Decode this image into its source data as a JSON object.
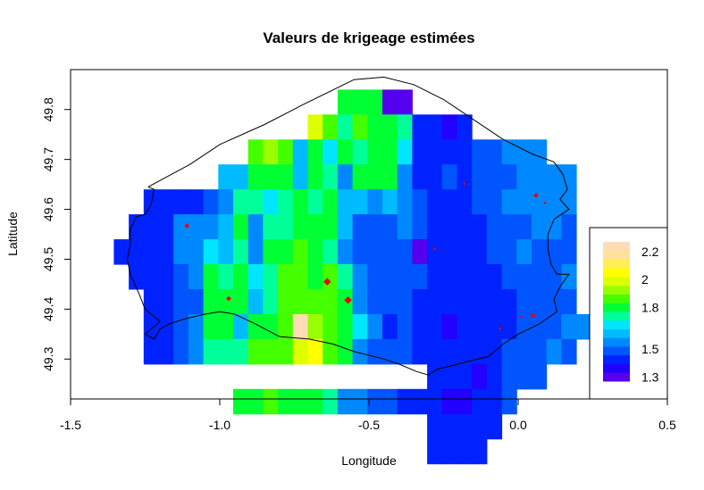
{
  "chart_data": {
    "type": "heatmap",
    "title": "Valeurs de krigeage estimées",
    "xlabel": "Longitude",
    "ylabel": "Latitude",
    "xlim": [
      -1.5,
      0.5
    ],
    "ylim": [
      49.22,
      49.88
    ],
    "x_ticks": [
      "-1.5",
      "-1.0",
      "-0.5",
      "0.0",
      "0.5"
    ],
    "x_tick_values": [
      -1.5,
      -1.0,
      -0.5,
      0.0,
      0.5
    ],
    "y_ticks": [
      "49.3",
      "49.4",
      "49.5",
      "49.6",
      "49.7",
      "49.8"
    ],
    "y_tick_values": [
      49.3,
      49.4,
      49.5,
      49.6,
      49.7,
      49.8
    ],
    "grid": false,
    "legend": {
      "placement": "bottom-right",
      "labels": [
        "2.2",
        "2",
        "1.8",
        "1.5",
        "1.3"
      ],
      "label_values": [
        2.2,
        2.0,
        1.8,
        1.5,
        1.3
      ],
      "range": [
        1.27,
        2.27
      ],
      "colors": [
        "#5500ee",
        "#2200ff",
        "#0022ff",
        "#0055ff",
        "#0088ff",
        "#00bbff",
        "#00e6ff",
        "#00ff99",
        "#00ff33",
        "#44ff00",
        "#99ff00",
        "#ddff00",
        "#ffff00",
        "#ffee55",
        "#ffe199",
        "#ffddb5"
      ]
    },
    "grid_cells": {
      "lon0": -1.33,
      "lon_step": 0.05,
      "lat0": 49.815,
      "lat_step": 0.05,
      "rows": [
        [
          null,
          null,
          null,
          null,
          null,
          null,
          null,
          null,
          null,
          null,
          null,
          null,
          null,
          null,
          null,
          1.81,
          1.81,
          1.78,
          1.33,
          1.33,
          null,
          null,
          null,
          null,
          null,
          null,
          null,
          null,
          null,
          null,
          null,
          null,
          null,
          null,
          null
        ],
        [
          null,
          null,
          null,
          null,
          null,
          null,
          null,
          null,
          null,
          null,
          null,
          null,
          null,
          2.0,
          1.84,
          1.75,
          1.84,
          1.78,
          1.78,
          1.72,
          1.45,
          1.45,
          1.39,
          1.45,
          null,
          null,
          null,
          null,
          null,
          null,
          null,
          null,
          null,
          null,
          null
        ],
        [
          null,
          null,
          null,
          null,
          null,
          null,
          null,
          null,
          null,
          1.84,
          1.9,
          1.87,
          1.63,
          1.78,
          1.7,
          1.78,
          1.72,
          1.78,
          1.78,
          1.66,
          1.45,
          1.45,
          1.45,
          1.45,
          1.5,
          1.5,
          1.58,
          1.58,
          1.58,
          null,
          null,
          null,
          null,
          null,
          null
        ],
        [
          null,
          null,
          null,
          null,
          null,
          null,
          null,
          1.62,
          1.62,
          1.78,
          1.78,
          1.81,
          1.63,
          1.81,
          1.75,
          1.58,
          1.81,
          1.78,
          1.78,
          1.58,
          1.45,
          1.45,
          1.5,
          1.45,
          1.5,
          1.5,
          1.5,
          1.55,
          1.58,
          1.58,
          1.58,
          null,
          null,
          null,
          null
        ],
        [
          null,
          null,
          1.45,
          1.45,
          1.45,
          1.45,
          1.5,
          1.58,
          1.75,
          1.75,
          1.66,
          1.75,
          1.78,
          1.75,
          1.81,
          1.62,
          1.62,
          1.58,
          1.62,
          1.58,
          1.5,
          1.45,
          1.45,
          1.42,
          1.5,
          1.5,
          1.58,
          1.58,
          1.58,
          1.58,
          1.58,
          null,
          null,
          null,
          null
        ],
        [
          null,
          1.45,
          1.45,
          1.45,
          1.55,
          1.58,
          1.58,
          1.62,
          1.78,
          1.58,
          1.75,
          1.75,
          1.78,
          1.81,
          1.78,
          1.62,
          1.5,
          1.5,
          1.5,
          1.55,
          1.5,
          1.45,
          1.45,
          1.45,
          1.45,
          1.5,
          1.5,
          1.5,
          1.58,
          1.55,
          1.5,
          null,
          null,
          null,
          null
        ],
        [
          1.45,
          1.45,
          1.42,
          1.45,
          1.58,
          1.58,
          1.66,
          1.62,
          1.75,
          1.58,
          1.78,
          1.81,
          1.84,
          1.81,
          1.75,
          1.58,
          1.5,
          1.5,
          1.5,
          1.5,
          1.33,
          1.42,
          1.45,
          1.42,
          1.45,
          1.5,
          1.5,
          1.55,
          1.5,
          1.5,
          1.5,
          null,
          null,
          null,
          null
        ],
        [
          null,
          1.45,
          1.45,
          1.45,
          1.5,
          1.58,
          1.78,
          1.75,
          1.78,
          1.66,
          1.75,
          1.84,
          1.84,
          1.81,
          1.87,
          1.75,
          1.58,
          1.5,
          1.5,
          1.5,
          1.5,
          1.45,
          1.42,
          1.45,
          1.45,
          1.45,
          1.5,
          1.5,
          1.5,
          1.5,
          1.55,
          null,
          null,
          null,
          null
        ],
        [
          null,
          null,
          1.45,
          1.45,
          1.5,
          1.5,
          1.78,
          1.78,
          1.78,
          1.62,
          1.75,
          1.87,
          1.87,
          1.87,
          1.87,
          1.78,
          1.58,
          1.5,
          1.5,
          1.5,
          1.45,
          1.45,
          1.42,
          1.42,
          1.45,
          1.45,
          1.45,
          1.5,
          1.5,
          1.5,
          1.5,
          null,
          null,
          null,
          null
        ],
        [
          null,
          null,
          1.45,
          1.45,
          1.5,
          1.58,
          1.78,
          1.78,
          1.62,
          1.78,
          1.81,
          1.87,
          2.24,
          1.93,
          1.87,
          1.78,
          1.66,
          1.58,
          1.42,
          1.5,
          1.45,
          1.42,
          1.36,
          1.42,
          1.45,
          1.45,
          1.45,
          1.5,
          1.5,
          1.5,
          1.55,
          1.58,
          null,
          null,
          null
        ],
        [
          null,
          null,
          1.45,
          1.45,
          1.5,
          1.55,
          1.75,
          1.75,
          1.75,
          1.84,
          1.87,
          1.87,
          1.96,
          2.02,
          1.87,
          1.81,
          1.58,
          1.5,
          1.5,
          1.5,
          1.45,
          1.42,
          1.42,
          1.42,
          1.45,
          1.45,
          1.5,
          1.5,
          1.5,
          1.55,
          1.5,
          null,
          null,
          null,
          null
        ],
        [
          null,
          null,
          null,
          null,
          null,
          null,
          null,
          null,
          null,
          null,
          null,
          null,
          null,
          null,
          null,
          null,
          null,
          null,
          null,
          null,
          null,
          1.45,
          1.42,
          1.42,
          1.39,
          1.45,
          1.5,
          1.5,
          1.5,
          null,
          null,
          null,
          null,
          null,
          null
        ],
        [
          null,
          null,
          null,
          null,
          null,
          null,
          null,
          null,
          1.81,
          1.81,
          1.84,
          1.81,
          1.81,
          1.78,
          1.75,
          1.58,
          1.58,
          1.5,
          1.5,
          1.45,
          1.45,
          1.42,
          1.39,
          1.39,
          1.45,
          1.45,
          1.5,
          null,
          null,
          null,
          null,
          null,
          null,
          null,
          null
        ],
        [
          null,
          null,
          null,
          null,
          null,
          null,
          null,
          null,
          null,
          null,
          null,
          null,
          null,
          null,
          null,
          null,
          null,
          null,
          null,
          null,
          null,
          1.45,
          1.45,
          1.42,
          1.45,
          1.45,
          null,
          null,
          null,
          null,
          null,
          null,
          null,
          null,
          null
        ],
        [
          null,
          null,
          null,
          null,
          null,
          null,
          null,
          null,
          null,
          null,
          null,
          null,
          null,
          null,
          null,
          null,
          null,
          null,
          null,
          null,
          null,
          1.45,
          1.45,
          1.45,
          1.45,
          null,
          null,
          null,
          null,
          null,
          null,
          null,
          null,
          null,
          null
        ]
      ]
    },
    "points": [
      {
        "lon": -1.11,
        "lat": 49.567,
        "size": "small"
      },
      {
        "lon": -0.97,
        "lat": 49.421,
        "size": "small"
      },
      {
        "lon": -0.64,
        "lat": 49.455,
        "size": "large"
      },
      {
        "lon": -0.57,
        "lat": 49.418,
        "size": "large"
      },
      {
        "lon": -0.28,
        "lat": 49.521,
        "size": "tiny"
      },
      {
        "lon": -0.18,
        "lat": 49.651,
        "size": "tiny"
      },
      {
        "lon": 0.06,
        "lat": 49.628,
        "size": "small"
      },
      {
        "lon": 0.09,
        "lat": 49.613,
        "size": "tiny"
      },
      {
        "lon": 0.01,
        "lat": 49.385,
        "size": "tiny"
      },
      {
        "lon": 0.05,
        "lat": 49.387,
        "size": "small"
      },
      {
        "lon": -0.06,
        "lat": 49.361,
        "size": "tiny"
      }
    ],
    "boundary": [
      [
        -1.24,
        49.645
      ],
      [
        -1.1,
        49.69
      ],
      [
        -1.0,
        49.73
      ],
      [
        -0.85,
        49.77
      ],
      [
        -0.72,
        49.81
      ],
      [
        -0.55,
        49.86
      ],
      [
        -0.45,
        49.865
      ],
      [
        -0.35,
        49.85
      ],
      [
        -0.25,
        49.82
      ],
      [
        -0.15,
        49.78
      ],
      [
        -0.05,
        49.74
      ],
      [
        0.05,
        49.71
      ],
      [
        0.12,
        49.695
      ],
      [
        0.15,
        49.67
      ],
      [
        0.165,
        49.64
      ],
      [
        0.14,
        49.62
      ],
      [
        0.17,
        49.6
      ],
      [
        0.12,
        49.58
      ],
      [
        0.1,
        49.55
      ],
      [
        0.1,
        49.52
      ],
      [
        0.11,
        49.49
      ],
      [
        0.13,
        49.47
      ],
      [
        0.17,
        49.47
      ],
      [
        0.14,
        49.445
      ],
      [
        0.12,
        49.42
      ],
      [
        0.13,
        49.395
      ],
      [
        0.07,
        49.37
      ],
      [
        0.0,
        49.35
      ],
      [
        -0.05,
        49.33
      ],
      [
        -0.1,
        49.305
      ],
      [
        -0.17,
        49.295
      ],
      [
        -0.22,
        49.287
      ],
      [
        -0.27,
        49.28
      ],
      [
        -0.3,
        49.268
      ],
      [
        -0.34,
        49.275
      ],
      [
        -0.4,
        49.29
      ],
      [
        -0.45,
        49.3
      ],
      [
        -0.55,
        49.315
      ],
      [
        -0.62,
        49.33
      ],
      [
        -0.7,
        49.34
      ],
      [
        -0.8,
        49.345
      ],
      [
        -0.88,
        49.37
      ],
      [
        -0.95,
        49.39
      ],
      [
        -1.0,
        49.395
      ],
      [
        -1.05,
        49.39
      ],
      [
        -1.12,
        49.38
      ],
      [
        -1.17,
        49.37
      ],
      [
        -1.2,
        49.36
      ],
      [
        -1.22,
        49.34
      ],
      [
        -1.25,
        49.35
      ],
      [
        -1.2,
        49.375
      ],
      [
        -1.25,
        49.4
      ],
      [
        -1.27,
        49.43
      ],
      [
        -1.3,
        49.47
      ],
      [
        -1.31,
        49.5
      ],
      [
        -1.3,
        49.53
      ],
      [
        -1.3,
        49.56
      ],
      [
        -1.28,
        49.585
      ],
      [
        -1.25,
        49.59
      ],
      [
        -1.23,
        49.61
      ],
      [
        -1.22,
        49.64
      ],
      [
        -1.24,
        49.645
      ]
    ]
  }
}
